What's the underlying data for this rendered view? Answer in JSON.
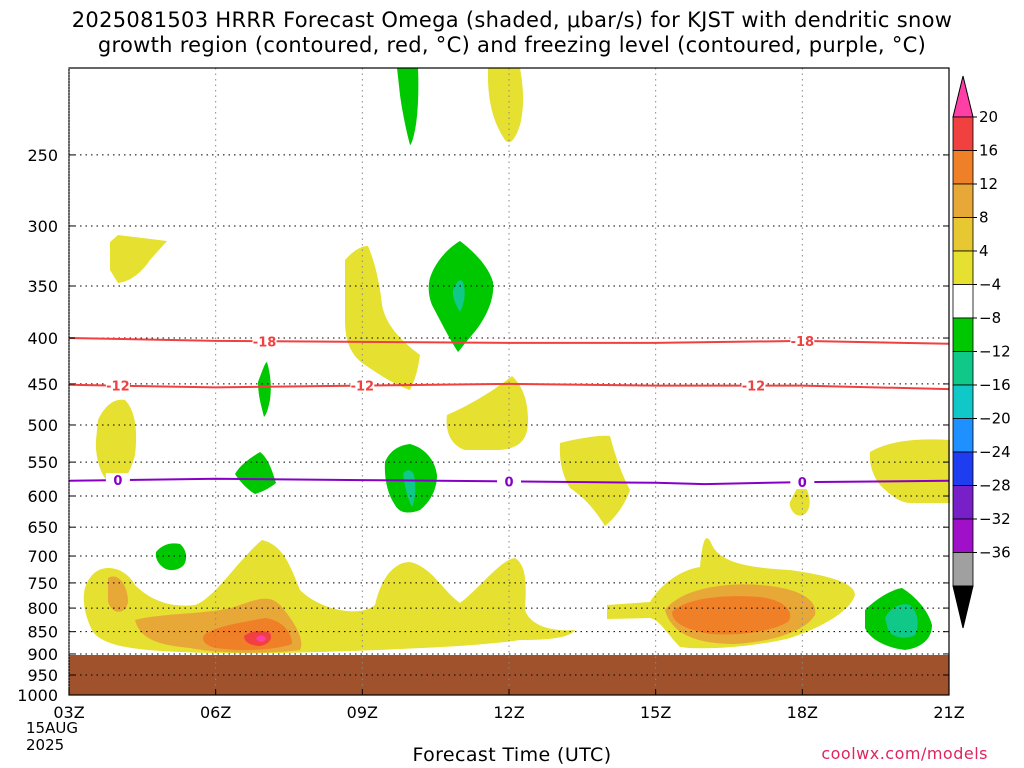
{
  "title": {
    "line1": "2025081503 HRRR Forecast Omega (shaded, μbar/s) for KJST with dendritic snow",
    "line2": "growth region (contoured, red, °C) and freezing level (contoured, purple, °C)"
  },
  "xlabel": "Forecast Time (UTC)",
  "date_label": [
    "15AUG",
    "2025"
  ],
  "credit": "coolwx.com/models",
  "colors": {
    "ground": "#a0522d",
    "grid": "#999999",
    "dgz_contour": "#f04040",
    "freezing_contour": "#8800c8",
    "brand": "#e0245e"
  },
  "chart_data": {
    "type": "heatmap",
    "x_axis": {
      "label": "Forecast Time (UTC)",
      "range": [
        "03Z",
        "21Z"
      ],
      "ticks": [
        "03Z",
        "06Z",
        "09Z",
        "12Z",
        "15Z",
        "18Z",
        "21Z"
      ]
    },
    "y_axis": {
      "label": "",
      "scale": "log-pressure",
      "inverted": true,
      "range": [
        1000,
        200
      ],
      "ticks": [
        250,
        300,
        350,
        400,
        450,
        500,
        550,
        600,
        650,
        700,
        750,
        800,
        850,
        900,
        950,
        1000
      ]
    },
    "grid": true,
    "colorbar": {
      "labels": [
        "20",
        "16",
        "12",
        "8",
        "4",
        "−4",
        "−8",
        "−12",
        "−16",
        "−20",
        "−24",
        "−28",
        "−32",
        "−36"
      ],
      "colors": [
        "#ff3fa5",
        "#f04040",
        "#f08028",
        "#e8a838",
        "#e8c832",
        "#e6e030",
        "#ffffff",
        "#00c800",
        "#10c888",
        "#10c8c8",
        "#1e90ff",
        "#1e3cf0",
        "#7820c8",
        "#a010c8",
        "#a0a0a0",
        "#000000"
      ],
      "unit": "μbar/s"
    },
    "contours": [
      {
        "name": "dendritic snow growth region",
        "color": "red",
        "values": [
          {
            "label": "-18",
            "points": [
              [
                "03Z",
                400
              ],
              [
                "06Z",
                403
              ],
              [
                "09Z",
                404
              ],
              [
                "12Z",
                405
              ],
              [
                "15Z",
                405
              ],
              [
                "18Z",
                403
              ],
              [
                "21Z",
                406
              ]
            ]
          },
          {
            "label": "-12",
            "points": [
              [
                "03Z",
                451
              ],
              [
                "06Z",
                454
              ],
              [
                "09Z",
                452
              ],
              [
                "12Z",
                450
              ],
              [
                "15Z",
                452
              ],
              [
                "18Z",
                452
              ],
              [
                "21Z",
                456
              ]
            ]
          }
        ]
      },
      {
        "name": "freezing level",
        "color": "purple",
        "values": [
          {
            "label": "0",
            "points": [
              [
                "03Z",
                577
              ],
              [
                "06Z",
                574
              ],
              [
                "09Z",
                576
              ],
              [
                "12Z",
                578
              ],
              [
                "15Z",
                580
              ],
              [
                "16Z",
                582
              ],
              [
                "18Z",
                579
              ],
              [
                "21Z",
                577
              ]
            ]
          }
        ]
      }
    ]
  }
}
